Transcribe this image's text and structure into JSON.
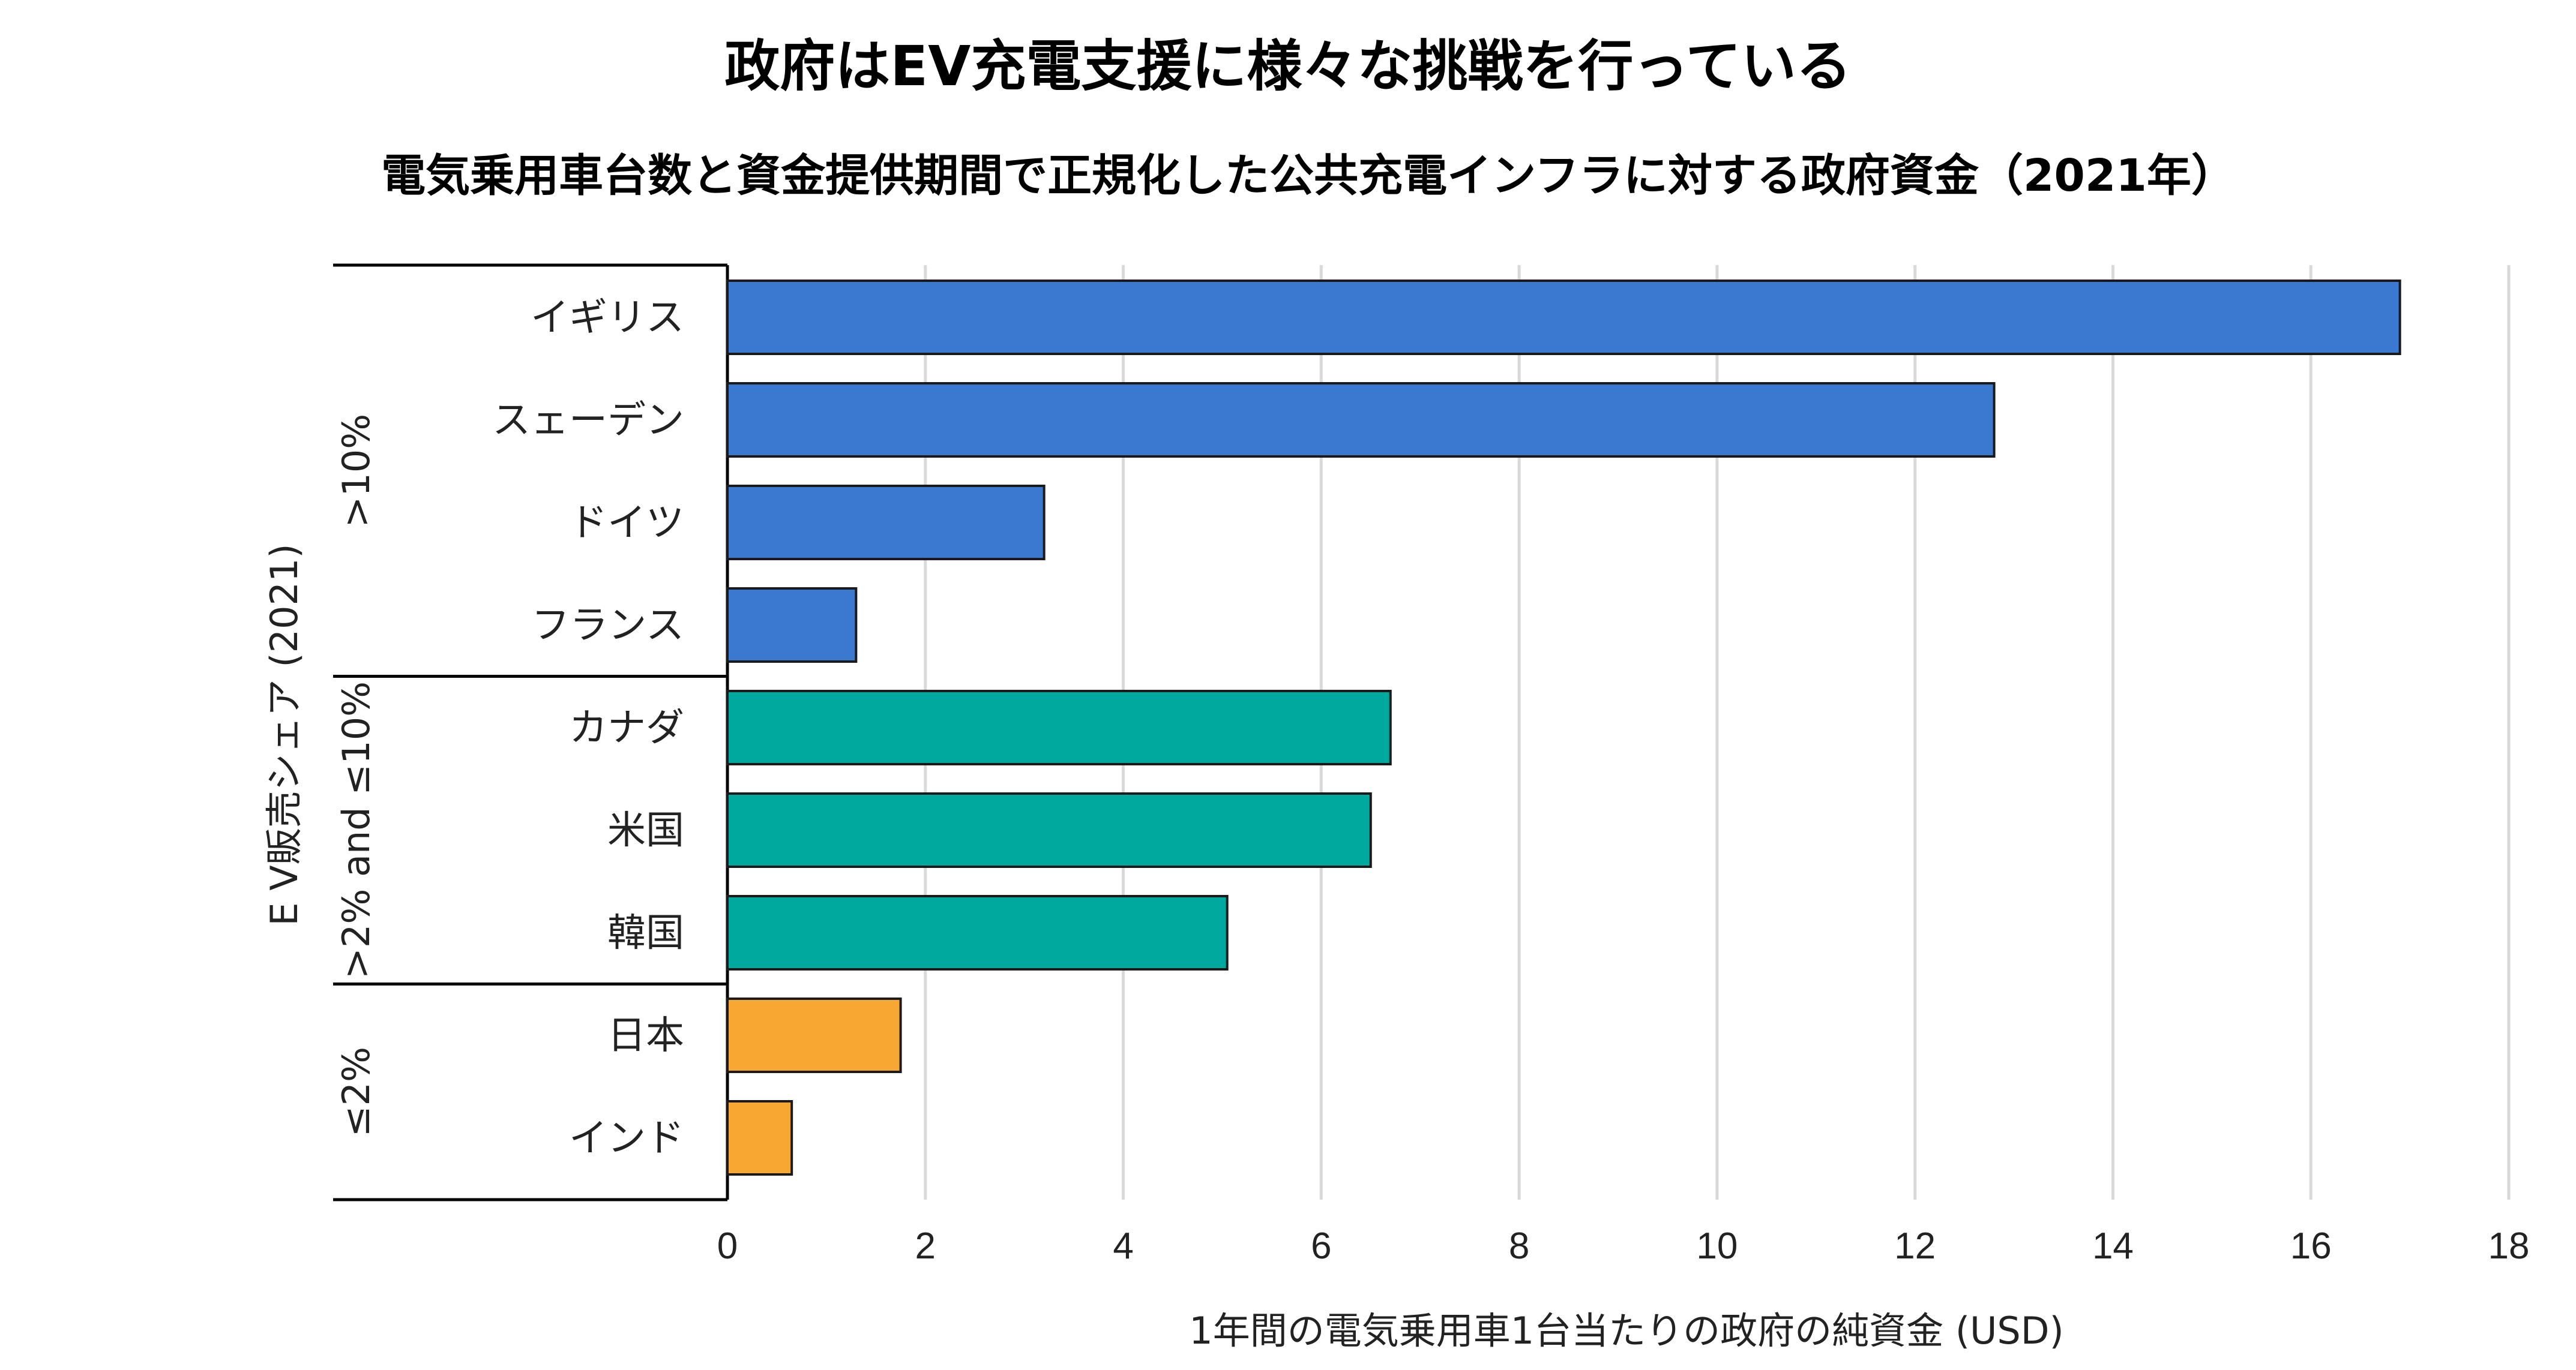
{
  "chart_data": {
    "type": "bar",
    "orientation": "horizontal",
    "title": "政府はEV充電支援に様々な挑戦を行っている",
    "subtitle": "電気乗用車台数と資金提供期間で正規化した公共充電インフラに対する政府資金（2021年）",
    "xlabel": "1年間の電気乗用車1台当たりの政府の純資金 (USD)",
    "ylabel": "E V販売シェア (2021)",
    "xlim": [
      0,
      18
    ],
    "xticks": [
      "0",
      "2",
      "4",
      "6",
      "8",
      "10",
      "12",
      "14",
      "16",
      "18"
    ],
    "grid": "vertical",
    "groups": [
      {
        "label": ">10%",
        "color": "#3B78CF",
        "categories": [
          "イギリス",
          "スェーデン",
          "ドイツ",
          "フランス"
        ],
        "values": [
          16.9,
          12.8,
          3.2,
          1.3
        ]
      },
      {
        "label": ">2% and ≤10%",
        "color": "#00A99D",
        "categories": [
          "カナダ",
          "米国",
          "韓国"
        ],
        "values": [
          6.7,
          6.5,
          5.05
        ]
      },
      {
        "label": "≤2%",
        "color": "#F7A833",
        "categories": [
          "日本",
          "インド"
        ],
        "values": [
          1.75,
          0.65
        ]
      }
    ]
  }
}
